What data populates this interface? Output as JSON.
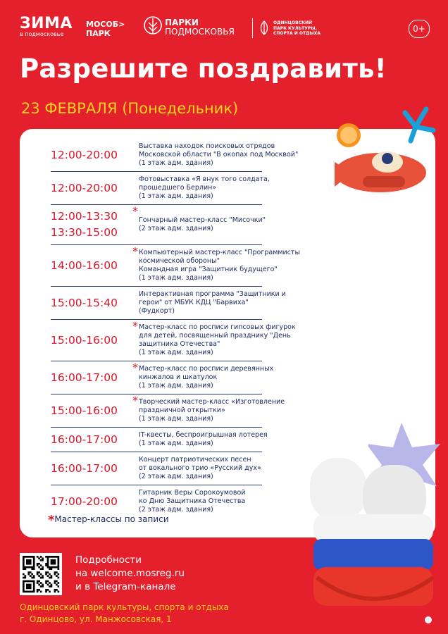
{
  "header": {
    "zima": "ЗИМА",
    "zima_sub": "в подмосковье",
    "mosobl": "МОСОБ>",
    "mosobl_sub": "ПАРК",
    "parki": "ПАРКИ",
    "parki_sub": "ПОДМОСКОВЬЯ",
    "odin": [
      "ОДИНЦОВСКИЙ",
      "ПАРК КУЛЬТУРЫ,",
      "СПОРТА И ОТДЫХА"
    ],
    "age": "0+"
  },
  "title": "Разрешите поздравить!",
  "subtitle": "23 ФЕВРАЛЯ (Понедельник)",
  "schedule": [
    {
      "times": [
        "12:00-20:00"
      ],
      "lines": [
        "Выставка находок поисковых отрядов",
        "Московской области \"В окопах под Москвой\"",
        "(1 этаж адм. здания)"
      ]
    },
    {
      "times": [
        "12:00-20:00"
      ],
      "lines": [
        "Фотовыставка «Я внук того солдата,",
        "прошедшего Берлин»",
        "(1 этаж адм. здания)"
      ]
    },
    {
      "times": [
        "12:00-13:30",
        "13:30-15:00"
      ],
      "mark": "*",
      "lines": [
        "Гончарный мастер-класс \"Мисочки\"",
        "(2 этаж адм. здания)"
      ]
    },
    {
      "times": [
        "14:00-16:00"
      ],
      "mark": "*",
      "lines": [
        "Компьютерный мастер-класс \"Программисты",
        "космической обороны\"",
        "Командная игра \"Защитник будущего\"",
        "(1 этаж адм. здания)"
      ]
    },
    {
      "times": [
        "15:00-15:40"
      ],
      "lines": [
        "Интерактивная программа \"Защитники и",
        "герои\" от МБУК КДЦ \"Барвиха\"",
        "(Фудкорт)"
      ]
    },
    {
      "times": [
        "15:00-16:00"
      ],
      "mark": "*",
      "lines": [
        "Мастер-класс по росписи гипсовых фигурок",
        "для детей, посвященный празднику \"День",
        "защитника Отечества\"",
        "(1 этаж адм. здания)"
      ]
    },
    {
      "times": [
        "16:00-17:00"
      ],
      "mark": "*",
      "lines": [
        "Мастер-класс по росписи деревянных",
        "кинжалов и шкатулок",
        "(1 этаж адм. здания)"
      ]
    },
    {
      "times": [
        "15:00-16:00"
      ],
      "mark": "*",
      "lines": [
        "Творческий мастер-класс «Изготовление",
        "праздничной открытки»",
        "(1 этаж адм. здания)"
      ]
    },
    {
      "times": [
        "16:00-17:00"
      ],
      "lines": [
        "IT-квесты, беспроигрышная лотерея",
        "(1 этаж адм. здания)"
      ]
    },
    {
      "times": [
        "16:00-17:00"
      ],
      "lines": [
        "Концерт патриотических песен",
        "от вокального трио «Русский дух»",
        "(2 этаж адм. здания)"
      ]
    },
    {
      "times": [
        "17:00-20:00"
      ],
      "lines": [
        "Гитарник Веры Сорокоумовой",
        "ко Дню Защитника Отечества",
        "(2 этаж адм. здания)"
      ]
    }
  ],
  "note": {
    "mark": "*",
    "text": "Мастер-классы по записи"
  },
  "more": [
    "Подробности",
    "на welcome.mosreg.ru",
    "и в Telegram-канале"
  ],
  "address": [
    "Одинцовский парк культуры, спорта и отдыха",
    "г. Одинцово, ул. Манжосовская, 1"
  ]
}
